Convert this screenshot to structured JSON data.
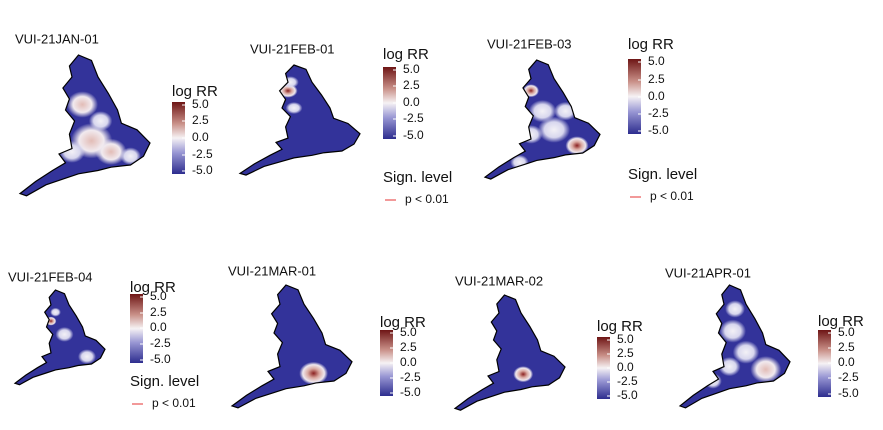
{
  "panels": [
    {
      "title": "VUI-21JAN-01",
      "legend": {
        "title": "log RR",
        "ticks": [
          "5.0",
          "2.5",
          "0.0",
          "-2.5",
          "-5.0"
        ]
      }
    },
    {
      "title": "VUI-21FEB-01",
      "legend": {
        "title": "log RR",
        "ticks": [
          "5.0",
          "2.5",
          "0.0",
          "-2.5",
          "-5.0"
        ]
      },
      "significance": {
        "title": "Sign. level",
        "label": "p < 0.01"
      }
    },
    {
      "title": "VUI-21FEB-03",
      "legend": {
        "title": "log RR",
        "ticks": [
          "5.0",
          "2.5",
          "0.0",
          "-2.5",
          "-5.0"
        ]
      },
      "significance": {
        "title": "Sign. level",
        "label": "p < 0.01"
      }
    },
    {
      "title": "VUI-21FEB-04",
      "legend": {
        "title": "log RR",
        "ticks": [
          "5.0",
          "2.5",
          "0.0",
          "-2.5",
          "-5.0"
        ]
      },
      "significance": {
        "title": "Sign. level",
        "label": "p < 0.01"
      }
    },
    {
      "title": "VUI-21MAR-01",
      "legend": {
        "title": "log RR",
        "ticks": [
          "5.0",
          "2.5",
          "0.0",
          "-2.5",
          "-5.0"
        ]
      }
    },
    {
      "title": "VUI-21MAR-02",
      "legend": {
        "title": "log RR",
        "ticks": [
          "5.0",
          "2.5",
          "0.0",
          "-2.5",
          "-5.0"
        ]
      }
    },
    {
      "title": "VUI-21APR-01",
      "legend": {
        "title": "log RR",
        "ticks": [
          "5.0",
          "2.5",
          "0.0",
          "-2.5",
          "-5.0"
        ]
      }
    }
  ]
}
